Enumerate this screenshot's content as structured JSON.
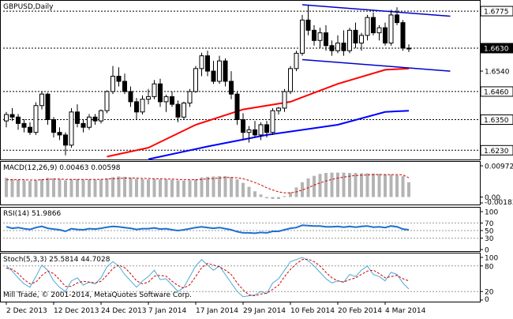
{
  "chart_data": [
    {
      "type": "candlestick",
      "title": "GBPUSD,Daily",
      "ylim": [
        1.62,
        1.68
      ],
      "price_labels": [
        "1.6775",
        "1.6630",
        "1.6540",
        "1.6460",
        "1.6350",
        "1.6230"
      ],
      "horizontal_levels": [
        1.6775,
        1.663,
        1.646,
        1.635,
        1.623
      ],
      "highlighted_levels": [
        "1.6775",
        "1.6630",
        "1.6460",
        "1.6350",
        "1.6230"
      ],
      "current_price_label": "1.6630",
      "x_labels": [
        "2 Dec 2013",
        "12 Dec 2013",
        "24 Dec 2013",
        "7 Jan 2014",
        "17 Jan 2014",
        "29 Jan 2014",
        "10 Feb 2014",
        "20 Feb 2014",
        "4 Mar 2014"
      ],
      "x_label_bars": [
        0,
        8,
        16,
        24,
        32,
        40,
        48,
        56,
        64
      ],
      "candles": [
        [
          1.6345,
          1.638,
          1.632,
          1.637
        ],
        [
          1.637,
          1.6395,
          1.6345,
          1.636
        ],
        [
          1.636,
          1.6372,
          1.631,
          1.6335
        ],
        [
          1.6335,
          1.6352,
          1.63,
          1.632
        ],
        [
          1.632,
          1.634,
          1.629,
          1.63
        ],
        [
          1.63,
          1.6418,
          1.629,
          1.6405
        ],
        [
          1.6405,
          1.646,
          1.639,
          1.645
        ],
        [
          1.645,
          1.6455,
          1.633,
          1.635
        ],
        [
          1.635,
          1.636,
          1.628,
          1.63
        ],
        [
          1.63,
          1.632,
          1.627,
          1.629
        ],
        [
          1.629,
          1.63,
          1.621,
          1.625
        ],
        [
          1.625,
          1.6395,
          1.624,
          1.638
        ],
        [
          1.638,
          1.641,
          1.632,
          1.6335
        ],
        [
          1.6335,
          1.6352,
          1.63,
          1.632
        ],
        [
          1.632,
          1.6372,
          1.631,
          1.636
        ],
        [
          1.636,
          1.6372,
          1.633,
          1.6345
        ],
        [
          1.6345,
          1.639,
          1.6335,
          1.6385
        ],
        [
          1.6385,
          1.6465,
          1.6375,
          1.646
        ],
        [
          1.646,
          1.656,
          1.645,
          1.652
        ],
        [
          1.652,
          1.6555,
          1.648,
          1.65
        ],
        [
          1.65,
          1.653,
          1.645,
          1.646
        ],
        [
          1.646,
          1.648,
          1.64,
          1.642
        ],
        [
          1.642,
          1.6435,
          1.635,
          1.638
        ],
        [
          1.638,
          1.6445,
          1.637,
          1.643
        ],
        [
          1.643,
          1.647,
          1.641,
          1.644
        ],
        [
          1.644,
          1.6505,
          1.643,
          1.649
        ],
        [
          1.649,
          1.651,
          1.64,
          1.642
        ],
        [
          1.642,
          1.6448,
          1.638,
          1.644
        ],
        [
          1.644,
          1.646,
          1.64,
          1.641
        ],
        [
          1.641,
          1.6425,
          1.634,
          1.636
        ],
        [
          1.636,
          1.642,
          1.635,
          1.6415
        ],
        [
          1.6415,
          1.647,
          1.64,
          1.646
        ],
        [
          1.646,
          1.656,
          1.6455,
          1.655
        ],
        [
          1.655,
          1.6612,
          1.652,
          1.66
        ],
        [
          1.66,
          1.662,
          1.652,
          1.654
        ],
        [
          1.654,
          1.658,
          1.649,
          1.65
        ],
        [
          1.65,
          1.66,
          1.649,
          1.658
        ],
        [
          1.658,
          1.659,
          1.648,
          1.65
        ],
        [
          1.65,
          1.654,
          1.643,
          1.645
        ],
        [
          1.645,
          1.646,
          1.633,
          1.635
        ],
        [
          1.635,
          1.6375,
          1.627,
          1.63
        ],
        [
          1.63,
          1.6325,
          1.626,
          1.631
        ],
        [
          1.631,
          1.6345,
          1.628,
          1.629
        ],
        [
          1.629,
          1.634,
          1.627,
          1.633
        ],
        [
          1.633,
          1.6345,
          1.628,
          1.63
        ],
        [
          1.63,
          1.6395,
          1.629,
          1.6385
        ],
        [
          1.6385,
          1.64,
          1.637,
          1.6395
        ],
        [
          1.6395,
          1.647,
          1.638,
          1.646
        ],
        [
          1.646,
          1.656,
          1.645,
          1.655
        ],
        [
          1.655,
          1.662,
          1.654,
          1.661
        ],
        [
          1.661,
          1.676,
          1.66,
          1.674
        ],
        [
          1.674,
          1.68,
          1.668,
          1.67
        ],
        [
          1.67,
          1.672,
          1.664,
          1.666
        ],
        [
          1.666,
          1.671,
          1.663,
          1.669
        ],
        [
          1.669,
          1.672,
          1.662,
          1.664
        ],
        [
          1.664,
          1.666,
          1.66,
          1.662
        ],
        [
          1.662,
          1.668,
          1.661,
          1.665
        ],
        [
          1.665,
          1.67,
          1.66,
          1.662
        ],
        [
          1.662,
          1.671,
          1.661,
          1.67
        ],
        [
          1.67,
          1.673,
          1.663,
          1.665
        ],
        [
          1.665,
          1.669,
          1.662,
          1.668
        ],
        [
          1.668,
          1.676,
          1.666,
          1.675
        ],
        [
          1.675,
          1.677,
          1.668,
          1.669
        ],
        [
          1.669,
          1.672,
          1.666,
          1.671
        ],
        [
          1.671,
          1.673,
          1.664,
          1.665
        ],
        [
          1.665,
          1.678,
          1.664,
          1.676
        ],
        [
          1.676,
          1.679,
          1.672,
          1.673
        ],
        [
          1.673,
          1.674,
          1.662,
          1.663
        ],
        [
          1.663,
          1.6645,
          1.6615,
          1.663
        ]
      ],
      "moving_averages": [
        {
          "color": "#ff0000",
          "points": [
            [
              17,
              1.6205
            ],
            [
              24,
              1.624
            ],
            [
              32,
              1.633
            ],
            [
              40,
              1.639
            ],
            [
              48,
              1.642
            ],
            [
              56,
              1.649
            ],
            [
              64,
              1.6545
            ],
            [
              68,
              1.655
            ]
          ]
        },
        {
          "color": "#0000ff",
          "points": [
            [
              24,
              1.6195
            ],
            [
              34,
              1.6245
            ],
            [
              44,
              1.629
            ],
            [
              56,
              1.633
            ],
            [
              64,
              1.638
            ],
            [
              68,
              1.6385
            ]
          ]
        }
      ],
      "trendlines": [
        {
          "color": "#0000cc",
          "from": [
            50,
            1.68
          ],
          "to": [
            75,
            1.6755
          ]
        },
        {
          "color": "#0000cc",
          "from": [
            50,
            1.6585
          ],
          "to": [
            75,
            1.654
          ]
        }
      ]
    },
    {
      "type": "histogram",
      "title": "MACD(12,26,9) 0.00463 0.00598",
      "ylim": [
        -0.00183,
        0.00972
      ],
      "tick_labels": [
        "0.00972",
        "0.00",
        "-0.00183"
      ],
      "main_values": [
        0.006,
        0.0056,
        0.0054,
        0.0052,
        0.005,
        0.0052,
        0.0056,
        0.006,
        0.0058,
        0.0056,
        0.0052,
        0.0055,
        0.0056,
        0.0054,
        0.0055,
        0.0054,
        0.0055,
        0.0058,
        0.0062,
        0.0064,
        0.0063,
        0.006,
        0.0057,
        0.0056,
        0.0055,
        0.0056,
        0.0055,
        0.0055,
        0.0054,
        0.0052,
        0.0051,
        0.0052,
        0.0055,
        0.0061,
        0.0063,
        0.0064,
        0.0065,
        0.0065,
        0.0062,
        0.0055,
        0.0044,
        0.0032,
        0.0018,
        0.0008,
        -0.0004,
        -0.0006,
        -0.0006,
        0.0003,
        0.0015,
        0.003,
        0.0046,
        0.0058,
        0.0066,
        0.0072,
        0.0075,
        0.0076,
        0.0076,
        0.0076,
        0.0075,
        0.0075,
        0.0074,
        0.0074,
        0.0073,
        0.0072,
        0.0071,
        0.007,
        0.0068,
        0.0065,
        0.0046
      ],
      "signal_values": [
        0.0054,
        0.0054,
        0.0054,
        0.0054,
        0.0053,
        0.0053,
        0.0054,
        0.0055,
        0.0056,
        0.0056,
        0.0055,
        0.0055,
        0.0055,
        0.0055,
        0.0055,
        0.0055,
        0.0055,
        0.0056,
        0.0057,
        0.0058,
        0.0059,
        0.0059,
        0.0059,
        0.0058,
        0.0058,
        0.0057,
        0.0057,
        0.0056,
        0.0056,
        0.0055,
        0.0054,
        0.0054,
        0.0054,
        0.0055,
        0.0057,
        0.0058,
        0.0059,
        0.0061,
        0.0061,
        0.006,
        0.0057,
        0.0052,
        0.0045,
        0.0038,
        0.0029,
        0.0022,
        0.0016,
        0.0013,
        0.0013,
        0.0016,
        0.0022,
        0.0029,
        0.0037,
        0.0044,
        0.005,
        0.0055,
        0.0059,
        0.0062,
        0.0065,
        0.0067,
        0.0068,
        0.0069,
        0.007,
        0.007,
        0.007,
        0.007,
        0.007,
        0.0069,
        0.006
      ]
    },
    {
      "type": "line",
      "title": "RSI(14) 51.9866",
      "ylim": [
        0,
        100
      ],
      "tick_labels": [
        "100",
        "70",
        "50",
        "30",
        "0"
      ],
      "levels": [
        70,
        50,
        30
      ],
      "values": [
        60,
        56,
        58,
        55,
        53,
        58,
        61,
        56,
        54,
        52,
        48,
        55,
        53,
        52,
        55,
        54,
        56,
        59,
        61,
        60,
        58,
        56,
        53,
        55,
        55,
        57,
        54,
        55,
        52,
        50,
        52,
        55,
        58,
        60,
        58,
        56,
        58,
        55,
        52,
        47,
        44,
        44,
        43,
        45,
        44,
        48,
        48,
        52,
        56,
        58,
        64,
        63,
        62,
        62,
        60,
        60,
        61,
        59,
        61,
        59,
        61,
        62,
        59,
        60,
        58,
        62,
        60,
        54,
        52
      ]
    },
    {
      "type": "line",
      "title": "Stoch(5,3,3) 25.5814 44.7028",
      "ylim": [
        0,
        100
      ],
      "tick_labels": [
        "100",
        "80",
        "20",
        "0"
      ],
      "levels": [
        80,
        20
      ],
      "series": [
        {
          "color": "#4aa8d8",
          "values": [
            80,
            68,
            52,
            38,
            30,
            55,
            82,
            70,
            45,
            30,
            20,
            45,
            52,
            35,
            42,
            38,
            52,
            78,
            90,
            80,
            60,
            45,
            30,
            45,
            55,
            70,
            48,
            50,
            35,
            20,
            30,
            55,
            80,
            95,
            82,
            70,
            80,
            60,
            40,
            20,
            8,
            10,
            12,
            20,
            15,
            40,
            50,
            70,
            90,
            95,
            100,
            92,
            80,
            65,
            50,
            40,
            45,
            42,
            60,
            55,
            70,
            80,
            60,
            55,
            45,
            65,
            60,
            40,
            26
          ]
        },
        {
          "color": "#cc0000",
          "dash": "3,2",
          "values": [
            75,
            72,
            62,
            48,
            38,
            42,
            58,
            68,
            62,
            48,
            32,
            32,
            40,
            44,
            42,
            40,
            44,
            58,
            74,
            82,
            76,
            62,
            45,
            38,
            42,
            56,
            58,
            56,
            44,
            34,
            28,
            36,
            55,
            76,
            86,
            82,
            78,
            70,
            60,
            40,
            24,
            12,
            10,
            14,
            16,
            25,
            35,
            55,
            72,
            85,
            95,
            96,
            90,
            80,
            65,
            52,
            45,
            42,
            48,
            52,
            60,
            68,
            70,
            62,
            52,
            55,
            58,
            50,
            45
          ]
        }
      ]
    }
  ],
  "footer": {
    "copyright": "Mill Trade, © 2001-2014, MetaQuotes Software Corp."
  }
}
